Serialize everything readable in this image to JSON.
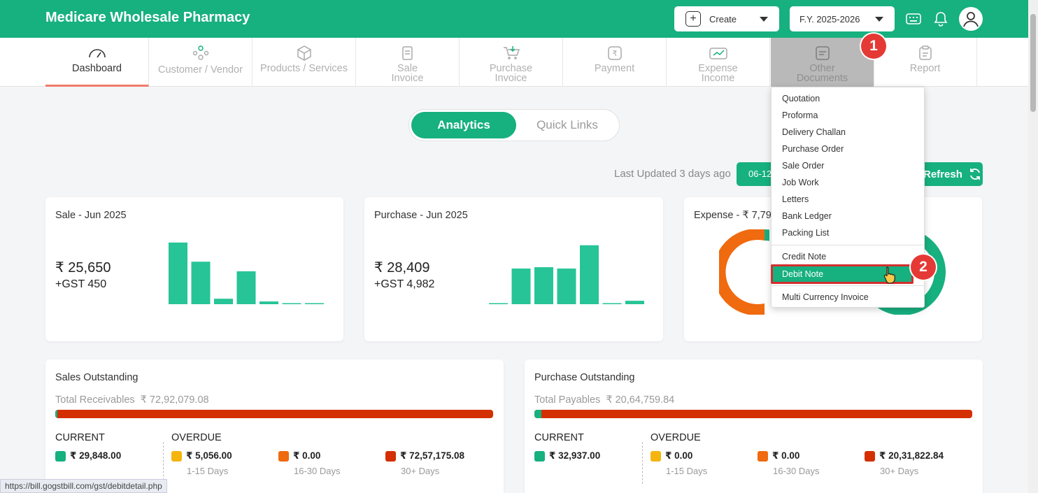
{
  "app": {
    "title": "Medicare Wholesale Pharmacy"
  },
  "topbar": {
    "create_label": "Create",
    "fy_label": "F.Y. 2025-2026"
  },
  "nav": [
    {
      "l1": "Dashboard",
      "l2": ""
    },
    {
      "l1": "Customer / Vendor",
      "l2": ""
    },
    {
      "l1": "Products / Services",
      "l2": ""
    },
    {
      "l1": "Sale",
      "l2": "Invoice"
    },
    {
      "l1": "Purchase",
      "l2": "Invoice"
    },
    {
      "l1": "Payment",
      "l2": ""
    },
    {
      "l1": "Expense",
      "l2": "Income"
    },
    {
      "l1": "Other",
      "l2": "Documents"
    },
    {
      "l1": "Report",
      "l2": ""
    }
  ],
  "toggle": {
    "analytics": "Analytics",
    "quick_links": "Quick Links"
  },
  "update": {
    "last_updated": "Last Updated 3 days ago",
    "date": "06-12",
    "refresh": "Refresh"
  },
  "sale": {
    "title": "Sale - Jun 2025",
    "amount": "₹ 25,650",
    "gst": "+GST 450",
    "bars": [
      90,
      62,
      8,
      48,
      4,
      1,
      1
    ]
  },
  "purchase": {
    "title": "Purchase - Jun 2025",
    "amount": "₹ 28,409",
    "gst": "+GST 4,982",
    "bars": [
      1,
      52,
      54,
      52,
      86,
      1,
      5
    ]
  },
  "expense": {
    "title": "Expense - ₹ 7,799"
  },
  "sales_outstanding": {
    "title": "Sales Outstanding",
    "total_label": "Total Receivables",
    "total": "₹ 72,92,079.08",
    "current_label": "CURRENT",
    "overdue_label": "OVERDUE",
    "current": "₹ 29,848.00",
    "d1_15": "₹ 5,056.00",
    "d16_30": "₹ 0.00",
    "d30p": "₹ 72,57,175.08",
    "current_fraction": 0.004
  },
  "purchase_outstanding": {
    "title": "Purchase Outstanding",
    "total_label": "Total Payables",
    "total": "₹ 20,64,759.84",
    "current_label": "CURRENT",
    "overdue_label": "OVERDUE",
    "current": "₹ 32,937.00",
    "d1_15": "₹ 0.00",
    "d16_30": "₹ 0.00",
    "d30p": "₹ 20,31,822.84",
    "current_fraction": 0.016
  },
  "buckets": {
    "b1": "1-15 Days",
    "b2": "16-30 Days",
    "b3": "30+ Days"
  },
  "menu": {
    "items": [
      "Quotation",
      "Proforma",
      "Delivery Challan",
      "Purchase Order",
      "Sale Order",
      "Job Work",
      "Letters",
      "Bank Ledger",
      "Packing List"
    ],
    "credit_note": "Credit Note",
    "debit_note": "Debit Note",
    "multi_currency": "Multi Currency Invoice"
  },
  "badges": {
    "one": "1",
    "two": "2"
  },
  "status_url": "https://bill.gogstbill.com/gst/debitdetail.php",
  "colors": {
    "brand": "#17b07f",
    "overdue_1_15": "#f5b50f",
    "overdue_16_30": "#f06a0f",
    "overdue_30p": "#d42f00",
    "highlight": "#d32f2f"
  }
}
